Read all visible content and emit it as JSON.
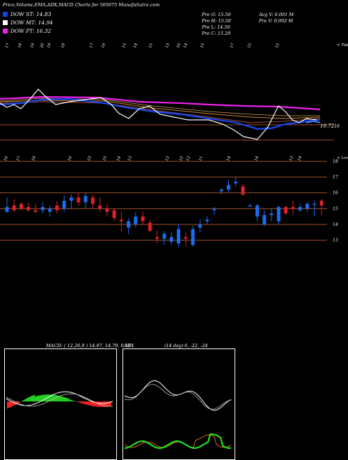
{
  "header": {
    "title": "Price,Volume,EMA,ADX,MACD Charts for 505075 MunafaSutra.com"
  },
  "legend": [
    {
      "label": "DOW ST: 14.83",
      "color": "#1a44e8"
    },
    {
      "label": "DOW MT: 14.94",
      "color": "#ffffff"
    },
    {
      "label": "DOW PT: 16.32",
      "color": "#ee22ee"
    }
  ],
  "stats": {
    "prev_open": "Pre   O: 15.50",
    "prev_high": "Pre   H: 15.50",
    "prev_low": "Pre   L: 14.50",
    "prev_close": "Pre   C: 15.29",
    "avg_volume": "Avg V: 0.001 M",
    "prev_volume": "Pre   V: 0.002  M"
  },
  "top_panel": {
    "corner_label": "< Topo",
    "value_label": "10.72",
    "right_label": "10",
    "top_digits": [
      "17",
      "18",
      "19",
      "20",
      "19",
      "18",
      "17",
      "16",
      "15",
      "14",
      "15",
      "15",
      "16",
      "14",
      "15",
      "17",
      "15",
      "15"
    ],
    "bottom_digits": [
      "16",
      "17",
      "18",
      "16",
      "15",
      "15",
      "14",
      "13",
      "13",
      "15",
      "12",
      "11",
      "14",
      "14",
      "13",
      "14"
    ]
  },
  "price_panel": {
    "corner_label": "< Lowso",
    "levels": [
      "18",
      "17",
      "16",
      "15",
      "14",
      "13"
    ]
  },
  "macd_panel": {
    "title": "MACD:",
    "params": "( 12,26,9 ) 14.97, 14.79, 0.18"
  },
  "adx_panel": {
    "title": "ADX",
    "params": "(14  day) 6,  -22,  -24"
  },
  "colors": {
    "up": "#1a6cf0",
    "down": "#e0202a",
    "grid": "#a0522d",
    "ema_short": "#1a44e8",
    "ema_long": "#ee22ee",
    "macd_hist_pos": "#22cc22",
    "macd_hist_neg": "#ee2222",
    "adx_plus": "#22dd22",
    "adx_minus": "#d2691e"
  },
  "chart_data": {
    "type": "candlestick",
    "title": "Price,Volume,EMA,ADX,MACD Charts for 505075 MunafaSutra.com",
    "ylim": [
      12.5,
      18.5
    ],
    "y_ticks": [
      18,
      17,
      16,
      15,
      14,
      13
    ],
    "candles": [
      {
        "o": 14.8,
        "h": 15.7,
        "l": 14.7,
        "c": 15.1
      },
      {
        "o": 15.2,
        "h": 15.6,
        "l": 14.8,
        "c": 14.9
      },
      {
        "o": 15.3,
        "h": 15.4,
        "l": 14.9,
        "c": 15.0
      },
      {
        "o": 15.1,
        "h": 15.4,
        "l": 14.8,
        "c": 14.9
      },
      {
        "o": 14.9,
        "h": 15.3,
        "l": 14.7,
        "c": 14.8
      },
      {
        "o": 14.9,
        "h": 15.4,
        "l": 14.7,
        "c": 15.1
      },
      {
        "o": 14.8,
        "h": 15.2,
        "l": 14.5,
        "c": 15.0
      },
      {
        "o": 15.2,
        "h": 15.5,
        "l": 14.7,
        "c": 14.9
      },
      {
        "o": 15.0,
        "h": 15.8,
        "l": 14.8,
        "c": 15.5
      },
      {
        "o": 15.5,
        "h": 15.9,
        "l": 15.0,
        "c": 15.7
      },
      {
        "o": 15.7,
        "h": 16.0,
        "l": 15.2,
        "c": 15.4
      },
      {
        "o": 15.4,
        "h": 16.0,
        "l": 15.0,
        "c": 15.8
      },
      {
        "o": 15.7,
        "h": 15.9,
        "l": 15.0,
        "c": 15.3
      },
      {
        "o": 15.2,
        "h": 15.7,
        "l": 14.8,
        "c": 15.0
      },
      {
        "o": 15.0,
        "h": 15.3,
        "l": 14.5,
        "c": 14.8
      },
      {
        "o": 14.9,
        "h": 15.0,
        "l": 14.2,
        "c": 14.4
      },
      {
        "o": 14.3,
        "h": 14.8,
        "l": 13.6,
        "c": 14.2
      },
      {
        "o": 13.8,
        "h": 14.4,
        "l": 13.4,
        "c": 14.2
      },
      {
        "o": 14.0,
        "h": 14.8,
        "l": 13.8,
        "c": 14.5
      },
      {
        "o": 14.5,
        "h": 14.8,
        "l": 14.0,
        "c": 14.2
      },
      {
        "o": 14.1,
        "h": 14.3,
        "l": 13.5,
        "c": 13.6
      },
      {
        "o": 13.2,
        "h": 13.6,
        "l": 12.8,
        "c": 13.1
      },
      {
        "o": 13.1,
        "h": 13.6,
        "l": 12.7,
        "c": 13.4
      },
      {
        "o": 12.9,
        "h": 13.5,
        "l": 12.7,
        "c": 13.2
      },
      {
        "o": 12.8,
        "h": 14.0,
        "l": 12.6,
        "c": 13.7
      },
      {
        "o": 13.2,
        "h": 13.5,
        "l": 12.6,
        "c": 13.1
      },
      {
        "o": 12.7,
        "h": 13.9,
        "l": 12.6,
        "c": 13.7
      },
      {
        "o": 13.8,
        "h": 14.3,
        "l": 13.5,
        "c": 14.0
      },
      {
        "o": 14.2,
        "h": 14.5,
        "l": 14.0,
        "c": 14.3
      },
      {
        "o": 14.9,
        "h": 15.1,
        "l": 14.6,
        "c": 15.0
      },
      {
        "o": 16.1,
        "h": 16.3,
        "l": 15.9,
        "c": 16.2
      },
      {
        "o": 16.2,
        "h": 16.8,
        "l": 16.0,
        "c": 16.5
      },
      {
        "o": 16.6,
        "h": 17.0,
        "l": 16.4,
        "c": 16.7
      },
      {
        "o": 16.4,
        "h": 16.6,
        "l": 15.8,
        "c": 15.9
      },
      {
        "o": 15.2,
        "h": 15.3,
        "l": 15.1,
        "c": 15.2
      },
      {
        "o": 14.5,
        "h": 15.3,
        "l": 14.2,
        "c": 15.2
      },
      {
        "o": 14.0,
        "h": 14.9,
        "l": 13.9,
        "c": 14.6
      },
      {
        "o": 14.6,
        "h": 15.0,
        "l": 14.2,
        "c": 14.7
      },
      {
        "o": 14.2,
        "h": 15.2,
        "l": 14.0,
        "c": 15.1
      },
      {
        "o": 15.1,
        "h": 15.2,
        "l": 14.6,
        "c": 14.7
      },
      {
        "o": 15.1,
        "h": 15.5,
        "l": 14.6,
        "c": 15.0
      },
      {
        "o": 14.9,
        "h": 15.3,
        "l": 14.8,
        "c": 15.1
      },
      {
        "o": 15.0,
        "h": 15.4,
        "l": 14.8,
        "c": 15.3
      },
      {
        "o": 15.3,
        "h": 15.5,
        "l": 14.5,
        "c": 15.3
      },
      {
        "o": 15.5,
        "h": 15.6,
        "l": 14.6,
        "c": 15.2
      }
    ]
  }
}
